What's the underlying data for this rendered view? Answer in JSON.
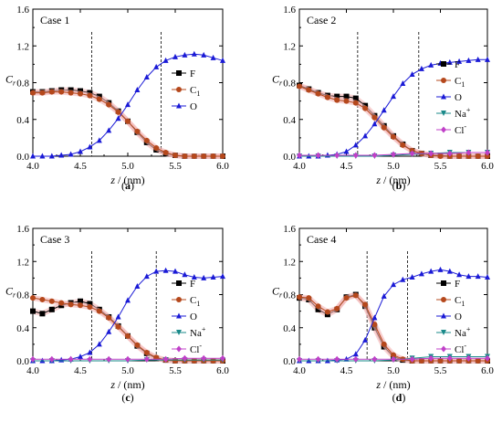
{
  "colors": {
    "F": "#000000",
    "C1": "#b5481c",
    "O": "#1a1ad6",
    "Na": "#1a8a8a",
    "Cl": "#c040c8",
    "band": "#f4b6b6",
    "axis": "#000000"
  },
  "chart_data": [
    {
      "type": "line",
      "panel_label": "(a)",
      "case_label": "Case 1",
      "xlabel": "z / (nm)",
      "ylabel": "Cr",
      "xlim": [
        4.0,
        6.0
      ],
      "ylim": [
        0.0,
        1.6
      ],
      "xticks": [
        "4.0",
        "4.5",
        "5.0",
        "5.5",
        "6.0"
      ],
      "yticks": [
        "0.0",
        "0.4",
        "0.8",
        "1.2",
        "1.6"
      ],
      "dashed_lines_x": [
        4.62,
        5.35
      ],
      "legend_position": "right",
      "series": [
        {
          "name": "F",
          "key": "F",
          "marker": "square",
          "x": [
            4.0,
            4.1,
            4.2,
            4.3,
            4.4,
            4.5,
            4.6,
            4.7,
            4.8,
            4.9,
            5.0,
            5.1,
            5.2,
            5.3,
            5.4,
            5.5,
            5.6,
            5.7,
            5.8,
            5.9,
            6.0
          ],
          "y": [
            0.7,
            0.7,
            0.71,
            0.72,
            0.72,
            0.71,
            0.69,
            0.65,
            0.58,
            0.49,
            0.38,
            0.26,
            0.15,
            0.07,
            0.03,
            0.01,
            0.0,
            0.0,
            0.0,
            0.0,
            0.0
          ]
        },
        {
          "name": "C1",
          "key": "C1",
          "marker": "circle",
          "x": [
            4.0,
            4.1,
            4.2,
            4.3,
            4.4,
            4.5,
            4.6,
            4.7,
            4.8,
            4.9,
            5.0,
            5.1,
            5.2,
            5.3,
            5.4,
            5.5,
            5.6,
            5.7,
            5.8,
            5.9,
            6.0
          ],
          "y": [
            0.69,
            0.69,
            0.7,
            0.7,
            0.69,
            0.68,
            0.66,
            0.62,
            0.56,
            0.48,
            0.38,
            0.27,
            0.17,
            0.09,
            0.04,
            0.01,
            0.0,
            0.0,
            0.0,
            0.0,
            0.0
          ]
        },
        {
          "name": "O",
          "key": "O",
          "marker": "triangle",
          "x": [
            4.0,
            4.1,
            4.2,
            4.3,
            4.4,
            4.5,
            4.6,
            4.7,
            4.8,
            4.9,
            5.0,
            5.1,
            5.2,
            5.3,
            5.4,
            5.5,
            5.6,
            5.7,
            5.8,
            5.9,
            6.0
          ],
          "y": [
            0.0,
            0.0,
            0.0,
            0.01,
            0.02,
            0.05,
            0.1,
            0.17,
            0.28,
            0.41,
            0.56,
            0.72,
            0.86,
            0.97,
            1.04,
            1.08,
            1.1,
            1.11,
            1.1,
            1.07,
            1.04
          ]
        }
      ]
    },
    {
      "type": "line",
      "panel_label": "(b)",
      "case_label": "Case 2",
      "xlabel": "z / (nm)",
      "ylabel": "Cr",
      "xlim": [
        4.0,
        6.0
      ],
      "ylim": [
        0.0,
        1.6
      ],
      "xticks": [
        "4.0",
        "4.5",
        "5.0",
        "5.5",
        "6.0"
      ],
      "yticks": [
        "0.0",
        "0.4",
        "0.8",
        "1.2",
        "1.6"
      ],
      "dashed_lines_x": [
        4.62,
        5.27
      ],
      "legend_position": "right",
      "series": [
        {
          "name": "F",
          "key": "F",
          "marker": "square",
          "x": [
            4.0,
            4.1,
            4.2,
            4.3,
            4.4,
            4.5,
            4.6,
            4.7,
            4.8,
            4.9,
            5.0,
            5.1,
            5.2,
            5.3,
            5.4,
            5.5,
            5.6,
            5.7,
            5.8,
            5.9,
            6.0
          ],
          "y": [
            0.77,
            0.73,
            0.69,
            0.66,
            0.65,
            0.65,
            0.63,
            0.55,
            0.44,
            0.33,
            0.22,
            0.13,
            0.06,
            0.03,
            0.01,
            0.01,
            0.0,
            0.0,
            0.0,
            0.0,
            0.0
          ]
        },
        {
          "name": "C1",
          "key": "C1",
          "marker": "circle",
          "x": [
            4.0,
            4.1,
            4.2,
            4.3,
            4.4,
            4.5,
            4.6,
            4.7,
            4.8,
            4.9,
            5.0,
            5.1,
            5.2,
            5.3,
            5.4,
            5.5,
            5.6,
            5.7,
            5.8,
            5.9,
            6.0
          ],
          "y": [
            0.76,
            0.72,
            0.68,
            0.64,
            0.61,
            0.6,
            0.58,
            0.52,
            0.42,
            0.31,
            0.21,
            0.12,
            0.06,
            0.03,
            0.01,
            0.0,
            0.0,
            0.0,
            0.0,
            0.0,
            0.0
          ]
        },
        {
          "name": "O",
          "key": "O",
          "marker": "triangle",
          "x": [
            4.0,
            4.1,
            4.2,
            4.3,
            4.4,
            4.5,
            4.6,
            4.7,
            4.8,
            4.9,
            5.0,
            5.1,
            5.2,
            5.3,
            5.4,
            5.5,
            5.6,
            5.7,
            5.8,
            5.9,
            6.0
          ],
          "y": [
            0.0,
            0.0,
            0.0,
            0.01,
            0.02,
            0.05,
            0.12,
            0.22,
            0.35,
            0.5,
            0.65,
            0.79,
            0.89,
            0.95,
            0.99,
            1.01,
            1.02,
            1.03,
            1.04,
            1.05,
            1.05
          ]
        },
        {
          "name": "Na+",
          "key": "Na",
          "marker": "triangle-down",
          "x": [
            4.0,
            4.2,
            4.4,
            4.6,
            4.8,
            5.0,
            5.2,
            5.4,
            5.6,
            5.8,
            6.0
          ],
          "y": [
            0.0,
            0.0,
            0.0,
            0.0,
            0.0,
            0.01,
            0.02,
            0.03,
            0.04,
            0.04,
            0.04
          ]
        },
        {
          "name": "Cl-",
          "key": "Cl",
          "marker": "diamond",
          "x": [
            4.0,
            4.2,
            4.4,
            4.6,
            4.8,
            5.0,
            5.2,
            5.4,
            5.6,
            5.8,
            6.0
          ],
          "y": [
            0.01,
            0.01,
            0.01,
            0.01,
            0.01,
            0.02,
            0.03,
            0.03,
            0.03,
            0.04,
            0.04
          ]
        }
      ]
    },
    {
      "type": "line",
      "panel_label": "(c)",
      "case_label": "Case 3",
      "xlabel": "z / (nm)",
      "ylabel": "Cr",
      "xlim": [
        4.0,
        6.0
      ],
      "ylim": [
        0.0,
        1.6
      ],
      "xticks": [
        "4.0",
        "4.5",
        "5.0",
        "5.5",
        "6.0"
      ],
      "yticks": [
        "0.0",
        "0.4",
        "0.8",
        "1.2",
        "1.6"
      ],
      "dashed_lines_x": [
        4.62,
        5.3
      ],
      "legend_position": "right",
      "series": [
        {
          "name": "F",
          "key": "F",
          "marker": "square",
          "x": [
            4.0,
            4.1,
            4.2,
            4.3,
            4.4,
            4.5,
            4.6,
            4.7,
            4.8,
            4.9,
            5.0,
            5.1,
            5.2,
            5.3,
            5.4,
            5.5,
            5.6,
            5.7,
            5.8,
            5.9,
            6.0
          ],
          "y": [
            0.6,
            0.57,
            0.62,
            0.67,
            0.7,
            0.72,
            0.69,
            0.62,
            0.53,
            0.42,
            0.3,
            0.18,
            0.09,
            0.03,
            0.01,
            0.0,
            0.0,
            0.0,
            0.0,
            0.0,
            0.0
          ]
        },
        {
          "name": "C1",
          "key": "C1",
          "marker": "circle",
          "x": [
            4.0,
            4.1,
            4.2,
            4.3,
            4.4,
            4.5,
            4.6,
            4.7,
            4.8,
            4.9,
            5.0,
            5.1,
            5.2,
            5.3,
            5.4,
            5.5,
            5.6,
            5.7,
            5.8,
            5.9,
            6.0
          ],
          "y": [
            0.76,
            0.74,
            0.72,
            0.7,
            0.68,
            0.67,
            0.65,
            0.6,
            0.52,
            0.41,
            0.3,
            0.19,
            0.1,
            0.04,
            0.01,
            0.0,
            0.0,
            0.0,
            0.0,
            0.0,
            0.0
          ]
        },
        {
          "name": "O",
          "key": "O",
          "marker": "triangle",
          "x": [
            4.0,
            4.1,
            4.2,
            4.3,
            4.4,
            4.5,
            4.6,
            4.7,
            4.8,
            4.9,
            5.0,
            5.1,
            5.2,
            5.3,
            5.4,
            5.5,
            5.6,
            5.7,
            5.8,
            5.9,
            6.0
          ],
          "y": [
            0.0,
            0.0,
            0.0,
            0.01,
            0.02,
            0.05,
            0.1,
            0.2,
            0.35,
            0.53,
            0.73,
            0.9,
            1.02,
            1.08,
            1.09,
            1.08,
            1.04,
            1.01,
            1.0,
            1.01,
            1.02
          ]
        },
        {
          "name": "Na+",
          "key": "Na",
          "marker": "triangle-down",
          "x": [
            4.0,
            4.2,
            4.4,
            4.6,
            4.8,
            5.0,
            5.2,
            5.4,
            5.6,
            5.8,
            6.0
          ],
          "y": [
            0.0,
            0.0,
            0.0,
            0.0,
            0.0,
            0.0,
            0.01,
            0.01,
            0.01,
            0.01,
            0.01
          ]
        },
        {
          "name": "Cl-",
          "key": "Cl",
          "marker": "diamond",
          "x": [
            4.0,
            4.2,
            4.4,
            4.6,
            4.8,
            5.0,
            5.2,
            5.4,
            5.6,
            5.8,
            6.0
          ],
          "y": [
            0.02,
            0.02,
            0.02,
            0.02,
            0.02,
            0.02,
            0.02,
            0.02,
            0.03,
            0.03,
            0.03
          ]
        }
      ]
    },
    {
      "type": "line",
      "panel_label": "(d)",
      "case_label": "Case 4",
      "xlabel": "z / (nm)",
      "ylabel": "Cr",
      "xlim": [
        4.0,
        6.0
      ],
      "ylim": [
        0.0,
        1.6
      ],
      "xticks": [
        "4.0",
        "4.5",
        "5.0",
        "5.5",
        "6.0"
      ],
      "yticks": [
        "0.0",
        "0.4",
        "0.8",
        "1.2",
        "1.6"
      ],
      "dashed_lines_x": [
        4.72,
        5.15
      ],
      "legend_position": "right",
      "series": [
        {
          "name": "F",
          "key": "F",
          "marker": "square",
          "x": [
            4.0,
            4.1,
            4.2,
            4.3,
            4.4,
            4.5,
            4.6,
            4.7,
            4.8,
            4.9,
            5.0,
            5.1,
            5.2,
            5.3,
            5.4,
            5.5,
            5.6,
            5.7,
            5.8,
            5.9,
            6.0
          ],
          "y": [
            0.76,
            0.74,
            0.62,
            0.56,
            0.62,
            0.77,
            0.8,
            0.66,
            0.4,
            0.17,
            0.05,
            0.01,
            0.0,
            0.0,
            0.0,
            0.0,
            0.0,
            0.0,
            0.0,
            0.0,
            0.0
          ]
        },
        {
          "name": "C1",
          "key": "C1",
          "marker": "circle",
          "x": [
            4.0,
            4.1,
            4.2,
            4.3,
            4.4,
            4.5,
            4.6,
            4.7,
            4.8,
            4.9,
            5.0,
            5.1,
            5.2,
            5.3,
            5.4,
            5.5,
            5.6,
            5.7,
            5.8,
            5.9,
            6.0
          ],
          "y": [
            0.77,
            0.76,
            0.66,
            0.59,
            0.63,
            0.76,
            0.79,
            0.68,
            0.44,
            0.2,
            0.07,
            0.02,
            0.0,
            0.0,
            0.0,
            0.0,
            0.0,
            0.0,
            0.0,
            0.0,
            0.0
          ]
        },
        {
          "name": "O",
          "key": "O",
          "marker": "triangle",
          "x": [
            4.0,
            4.1,
            4.2,
            4.3,
            4.4,
            4.5,
            4.6,
            4.7,
            4.8,
            4.9,
            5.0,
            5.1,
            5.2,
            5.3,
            5.4,
            5.5,
            5.6,
            5.7,
            5.8,
            5.9,
            6.0
          ],
          "y": [
            0.0,
            0.0,
            0.0,
            0.0,
            0.01,
            0.02,
            0.08,
            0.25,
            0.52,
            0.78,
            0.92,
            0.98,
            1.01,
            1.05,
            1.08,
            1.1,
            1.08,
            1.04,
            1.02,
            1.02,
            1.01
          ]
        },
        {
          "name": "Na+",
          "key": "Na",
          "marker": "triangle-down",
          "x": [
            4.0,
            4.2,
            4.4,
            4.6,
            4.8,
            5.0,
            5.2,
            5.4,
            5.6,
            5.8,
            6.0
          ],
          "y": [
            0.0,
            0.0,
            0.0,
            0.0,
            0.0,
            0.01,
            0.03,
            0.05,
            0.05,
            0.05,
            0.05
          ]
        },
        {
          "name": "Cl-",
          "key": "Cl",
          "marker": "diamond",
          "x": [
            4.0,
            4.2,
            4.4,
            4.6,
            4.8,
            5.0,
            5.2,
            5.4,
            5.6,
            5.8,
            6.0
          ],
          "y": [
            0.02,
            0.02,
            0.02,
            0.02,
            0.02,
            0.02,
            0.02,
            0.03,
            0.03,
            0.03,
            0.03
          ]
        }
      ]
    }
  ]
}
